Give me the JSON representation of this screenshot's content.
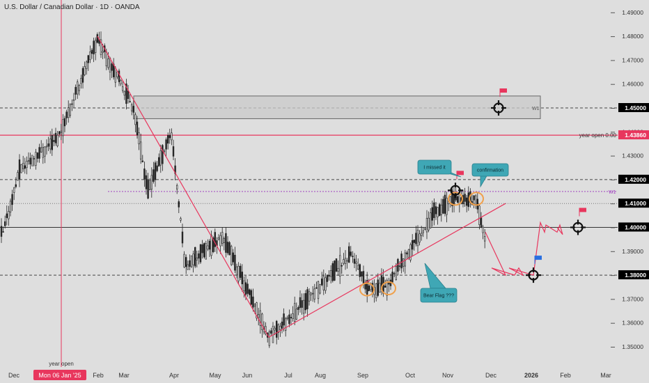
{
  "header": {
    "symbol_title": "U.S. Dollar / Canadian Dollar · 1D · OANDA"
  },
  "colors": {
    "background": "#dedede",
    "candle": "#222222",
    "trend_red": "#e8365d",
    "zone_fill": "#c9c9c9",
    "callout_teal": "#3fa7b5",
    "circle_orange": "#f0a04a",
    "flag_red": "#e8365d",
    "flag_blue": "#2a6fe0",
    "w1_purple": "#a040c0"
  },
  "chart_data": {
    "type": "candlestick",
    "symbol": "USDCAD",
    "timeframe": "1D",
    "y_axis": {
      "ticks": [
        "1.49000",
        "1.48000",
        "1.47000",
        "1.46000",
        "1.45000",
        "1.44000",
        "1.43000",
        "1.42000",
        "1.41000",
        "1.40000",
        "1.39000",
        "1.38000",
        "1.37000",
        "1.36000",
        "1.35000"
      ],
      "ylim": [
        1.346,
        1.492
      ]
    },
    "x_axis": {
      "ticks": [
        "Dec",
        "Jan",
        "Feb",
        "Mar",
        "Apr",
        "May",
        "Jun",
        "Jul",
        "Aug",
        "Sep",
        "Oct",
        "Nov",
        "Dec",
        "2026",
        "Feb",
        "Mar"
      ]
    },
    "price_anchors": [
      {
        "date": "Nov 2024",
        "price": 1.397
      },
      {
        "date": "Dec 2024",
        "price": 1.424
      },
      {
        "date": "Jan 2025",
        "price": 1.438
      },
      {
        "date": "Early Feb 2025",
        "price": 1.479
      },
      {
        "date": "Early Mar 2025",
        "price": 1.45
      },
      {
        "date": "Mid Mar 2025",
        "price": 1.415
      },
      {
        "date": "Early Apr 2025",
        "price": 1.44
      },
      {
        "date": "Mid Apr 2025",
        "price": 1.384
      },
      {
        "date": "Early May 2025",
        "price": 1.396
      },
      {
        "date": "Mid Jun 2025",
        "price": 1.354
      },
      {
        "date": "Early Jul 2025",
        "price": 1.365
      },
      {
        "date": "Early Aug 2025",
        "price": 1.389
      },
      {
        "date": "Late Aug 2025",
        "price": 1.374
      },
      {
        "date": "Mid Sep 2025",
        "price": 1.376
      },
      {
        "date": "Mid Oct 2025",
        "price": 1.406
      },
      {
        "date": "Early Nov 2025",
        "price": 1.412
      },
      {
        "date": "Late Nov 2025",
        "price": 1.411
      },
      {
        "date": "Early Dec 2025",
        "price": 1.394
      }
    ],
    "levels": [
      {
        "price": 1.45,
        "label": "1.45000",
        "style": "dashed"
      },
      {
        "price": 1.4386,
        "label": "1.43860",
        "style": "solid-red",
        "note": "year open 0.00"
      },
      {
        "price": 1.42,
        "label": "1.42000",
        "style": "dashed"
      },
      {
        "price": 1.41,
        "label": "1.41000",
        "style": "dotted"
      },
      {
        "price": 1.4,
        "label": "1.40000",
        "style": "solid"
      },
      {
        "price": 1.38,
        "label": "1.38000",
        "style": "dashed"
      }
    ],
    "zone": {
      "top": 1.455,
      "bottom": 1.4455,
      "label": "W1"
    },
    "w1_line": {
      "price": 1.415,
      "label": "W1"
    },
    "trendlines": [
      {
        "from": {
          "date": "Early Feb 2025",
          "price": 1.48
        },
        "to": {
          "date": "Mid Jun 2025",
          "price": 1.354
        }
      },
      {
        "from": {
          "date": "Mid Jun 2025",
          "price": 1.354
        },
        "to": {
          "date": "Mid Dec 2025",
          "price": 1.41
        }
      }
    ],
    "projection": [
      {
        "date": "Early Dec 2025",
        "price": 1.398
      },
      {
        "date": "Mid Dec 2025",
        "price": 1.38
      },
      {
        "date": "Dec 2025",
        "price": 1.383
      },
      {
        "date": "Late Dec 2025",
        "price": 1.38
      },
      {
        "date": "Late Dec 2025",
        "price": 1.383
      },
      {
        "date": "Late Dec 2025",
        "price": 1.38
      },
      {
        "date": "Dec 2025",
        "price": 1.383
      },
      {
        "date": "Early Jan 2026",
        "price": 1.38
      },
      {
        "date": "Mid Jan 2026",
        "price": 1.402
      },
      {
        "date": "Mid Jan 2026",
        "price": 1.398
      },
      {
        "date": "Mid Jan 2026",
        "price": 1.401
      },
      {
        "date": "Late Jan 2026",
        "price": 1.398
      },
      {
        "date": "Late Jan 2026",
        "price": 1.401
      },
      {
        "date": "Late Jan 2026",
        "price": 1.397
      },
      {
        "date": "Late Jan 2026",
        "price": 1.4
      }
    ],
    "targets": [
      {
        "date": "Dec 2025",
        "price": 1.45,
        "flag": "red"
      },
      {
        "date": "Early Nov 2025",
        "price": 1.4155,
        "flag": "red"
      },
      {
        "date": "Early Jan 2026",
        "price": 1.38,
        "flag": "blue"
      },
      {
        "date": "Early Feb 2026",
        "price": 1.4,
        "flag": "red"
      }
    ],
    "circles": [
      {
        "date": "Late Aug 2025",
        "price": 1.374
      },
      {
        "date": "Mid Sep 2025",
        "price": 1.3745
      },
      {
        "date": "Early Nov 2025",
        "price": 1.412
      },
      {
        "date": "Late Nov 2025",
        "price": 1.412
      }
    ],
    "annotations": {
      "missed": "I missed it",
      "confirmation": "confirmation",
      "bear_flag": "Bear Flag ???",
      "year_open_vline": "year open",
      "date_marker": "Mon 06 Jan '25"
    }
  }
}
